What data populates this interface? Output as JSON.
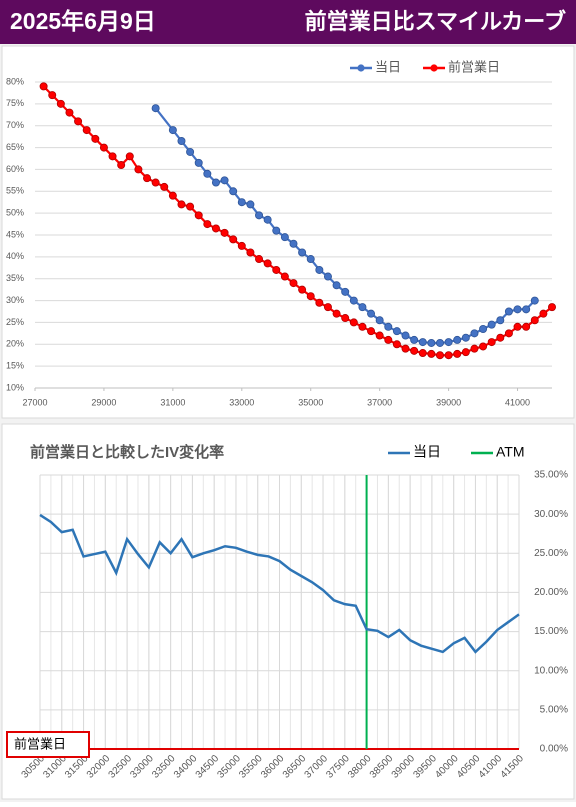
{
  "header": {
    "date": "2025年6月9日",
    "title": "前営業日比スマイルカーブ"
  },
  "chart_data": [
    {
      "type": "line",
      "markers": true,
      "grid": true,
      "legend": "top-right",
      "xlim": [
        27000,
        42000
      ],
      "xticks": [
        27000,
        29000,
        31000,
        33000,
        35000,
        37000,
        39000,
        41000
      ],
      "ylim": [
        10,
        80
      ],
      "yticks": [
        {
          "value": 10,
          "label": "10%"
        },
        {
          "value": 15,
          "label": "15%"
        },
        {
          "value": 20,
          "label": "20%"
        },
        {
          "value": 25,
          "label": "25%"
        },
        {
          "value": 30,
          "label": "30%"
        },
        {
          "value": 35,
          "label": "35%"
        },
        {
          "value": 40,
          "label": "40%"
        },
        {
          "value": 45,
          "label": "45%"
        },
        {
          "value": 50,
          "label": "50%"
        },
        {
          "value": 55,
          "label": "55%"
        },
        {
          "value": 60,
          "label": "60%"
        },
        {
          "value": 65,
          "label": "65%"
        },
        {
          "value": 70,
          "label": "70%"
        },
        {
          "value": 75,
          "label": "75%"
        },
        {
          "value": 80,
          "label": "80%"
        }
      ],
      "series": [
        {
          "name": "当日",
          "color": "#4472c4",
          "x": [
            30500,
            31000,
            31250,
            31500,
            31750,
            32000,
            32250,
            32500,
            32750,
            33000,
            33250,
            33500,
            33750,
            34000,
            34250,
            34500,
            34750,
            35000,
            35250,
            35500,
            35750,
            36000,
            36250,
            36500,
            36750,
            37000,
            37250,
            37500,
            37750,
            38000,
            38250,
            38500,
            38750,
            39000,
            39250,
            39500,
            39750,
            40000,
            40250,
            40500,
            40750,
            41000,
            41250,
            41500
          ],
          "values": [
            74,
            69,
            66.5,
            64,
            61.5,
            59,
            57,
            57.5,
            55,
            52.5,
            52,
            49.5,
            48.5,
            46,
            44.5,
            43,
            41,
            39.5,
            37,
            35.5,
            33.5,
            32,
            30,
            28.5,
            27,
            25.5,
            24,
            23,
            22,
            21,
            20.5,
            20.3,
            20.3,
            20.5,
            21,
            21.5,
            22.5,
            23.5,
            24.5,
            25.5,
            27.5,
            28,
            28,
            30
          ]
        },
        {
          "name": "前営業日",
          "color": "#ff0000",
          "x": [
            27250,
            27500,
            27750,
            28000,
            28250,
            28500,
            28750,
            29000,
            29250,
            29500,
            29750,
            30000,
            30250,
            30500,
            30750,
            31000,
            31250,
            31500,
            31750,
            32000,
            32250,
            32500,
            32750,
            33000,
            33250,
            33500,
            33750,
            34000,
            34250,
            34500,
            34750,
            35000,
            35250,
            35500,
            35750,
            36000,
            36250,
            36500,
            36750,
            37000,
            37250,
            37500,
            37750,
            38000,
            38250,
            38500,
            38750,
            39000,
            39250,
            39500,
            39750,
            40000,
            40250,
            40500,
            40750,
            41000,
            41250,
            41500,
            41750,
            42000
          ],
          "values": [
            79,
            77,
            75,
            73,
            71,
            69,
            67,
            65,
            63,
            61,
            63,
            60,
            58,
            57,
            56,
            54,
            52,
            51.5,
            49.5,
            47.5,
            46.5,
            45.5,
            44,
            42.5,
            41,
            39.5,
            38.5,
            37,
            35.5,
            34,
            32.5,
            31,
            29.5,
            28.5,
            27,
            26,
            25,
            24,
            23,
            22,
            21,
            20,
            19,
            18.5,
            18,
            17.8,
            17.5,
            17.5,
            17.8,
            18.2,
            19,
            19.5,
            20.5,
            21.5,
            22.5,
            24,
            24,
            25.5,
            27,
            28.5
          ]
        }
      ]
    },
    {
      "type": "line",
      "title": "前営業日と比較したIV変化率",
      "y_axis_side": "right",
      "grid": true,
      "legend": "top-right",
      "xlim": [
        30500,
        41500
      ],
      "xticks": [
        30500,
        31000,
        31500,
        32000,
        32500,
        33000,
        33500,
        34000,
        34500,
        35000,
        35500,
        36000,
        36500,
        37000,
        37500,
        38000,
        38500,
        39000,
        39500,
        40000,
        40500,
        41000,
        41500
      ],
      "ylim": [
        0,
        35
      ],
      "yticks": [
        {
          "value": 0,
          "label": "0.00%"
        },
        {
          "value": 5,
          "label": "5.00%"
        },
        {
          "value": 10,
          "label": "10.00%"
        },
        {
          "value": 15,
          "label": "15.00%"
        },
        {
          "value": 20,
          "label": "20.00%"
        },
        {
          "value": 25,
          "label": "25.00%"
        },
        {
          "value": 30,
          "label": "30.00%"
        },
        {
          "value": 35,
          "label": "35.00%"
        }
      ],
      "series": [
        {
          "name": "当日",
          "color": "#2e75b6",
          "x": [
            30500,
            30750,
            31000,
            31250,
            31500,
            31750,
            32000,
            32250,
            32500,
            32750,
            33000,
            33250,
            33500,
            33750,
            34000,
            34250,
            34500,
            34750,
            35000,
            35250,
            35500,
            35750,
            36000,
            36250,
            36500,
            36750,
            37000,
            37250,
            37500,
            37750,
            38000,
            38250,
            38500,
            38750,
            39000,
            39250,
            39500,
            39750,
            40000,
            40250,
            40500,
            40750,
            41000,
            41250,
            41500
          ],
          "values": [
            29.9,
            29,
            27.7,
            28,
            24.6,
            24.9,
            25.2,
            22.5,
            26.8,
            24.9,
            23.2,
            26.4,
            25,
            26.8,
            24.5,
            25,
            25.4,
            25.9,
            25.7,
            25.2,
            24.8,
            24.6,
            24,
            22.9,
            22.1,
            21.3,
            20.3,
            19,
            18.5,
            18.3,
            15.3,
            15.1,
            14.3,
            15.2,
            13.9,
            13.2,
            12.8,
            12.4,
            13.5,
            14.2,
            12.4,
            13.7,
            15.2,
            16.2,
            17.2
          ]
        }
      ],
      "reference_lines": [
        {
          "name": "ATM",
          "x": 38000,
          "color": "#00b050"
        }
      ],
      "baseline": {
        "label": "前営業日",
        "value": 0,
        "color": "#e00000"
      }
    }
  ]
}
